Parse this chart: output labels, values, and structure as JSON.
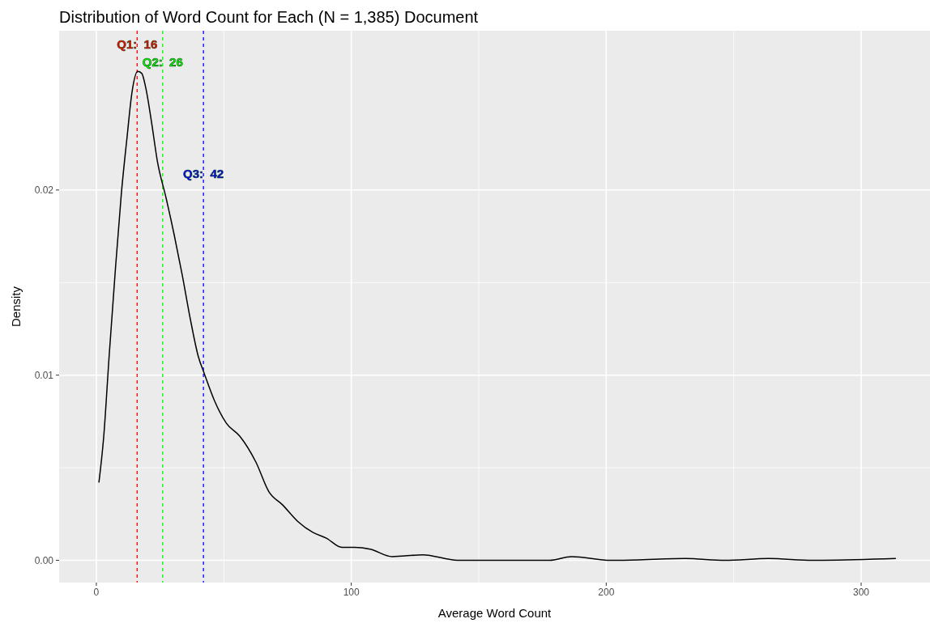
{
  "chart_data": {
    "type": "line",
    "title": "Distribution of Word Count for Each (N = 1,385) Document",
    "xlabel": "Average Word Count",
    "ylabel": "Density",
    "xlim": [
      -14.6,
      327
    ],
    "ylim": [
      -0.0012,
      0.0286
    ],
    "xticks": [
      0,
      100,
      200,
      300
    ],
    "yticks": [
      {
        "value": 0,
        "label": "0.00"
      },
      {
        "value": 0.01,
        "label": "0.01"
      },
      {
        "value": 0.02,
        "label": "0.02"
      }
    ],
    "grid": true,
    "marker": "none",
    "line_style": "solid",
    "series": [
      {
        "color": "#000000",
        "x": [
          1,
          2.9,
          5,
          7.3,
          9.8,
          12,
          14,
          16.2,
          17.8,
          19.4,
          21.6,
          24,
          27.3,
          30.5,
          33.7,
          36.9,
          40,
          42.3,
          46.4,
          51,
          56.3,
          62.6,
          67.7,
          73,
          79,
          85,
          90.2,
          96.3,
          101.3,
          107.4,
          116,
          128,
          141.7,
          160.6,
          177.8,
          186.4,
          201.8,
          231,
          246.6,
          263.7,
          281,
          313.6
        ],
        "values": [
          0.0042,
          0.0067,
          0.011,
          0.0154,
          0.0198,
          0.0228,
          0.0253,
          0.0264,
          0.0263,
          0.0255,
          0.0237,
          0.0215,
          0.0196,
          0.0176,
          0.0154,
          0.013,
          0.011,
          0.0101,
          0.0086,
          0.0074,
          0.0067,
          0.0053,
          0.0037,
          0.003,
          0.0021,
          0.0015,
          0.0012,
          0.0007,
          0.0007,
          0.0006,
          0.0002,
          0.0003,
          0.0,
          0.0,
          0.0,
          0.0002,
          0.0,
          0.0001,
          0.0,
          0.0001,
          0.0,
          0.0001
        ]
      }
    ],
    "ref_lines": [
      {
        "axis": "x",
        "value": 16,
        "color": "#ff0000",
        "line_style": "dashed"
      },
      {
        "axis": "x",
        "value": 26,
        "color": "#00ff00",
        "line_style": "dashed"
      },
      {
        "axis": "x",
        "value": 42,
        "color": "#0000ff",
        "line_style": "dashed"
      }
    ],
    "annotations": [
      {
        "text": "Q1:  16",
        "x": 16,
        "y": 0.0279
      },
      {
        "text": "Q2:  26",
        "x": 26,
        "y": 0.0269
      },
      {
        "text": "Q3:  42",
        "x": 42,
        "y": 0.0209
      }
    ]
  }
}
